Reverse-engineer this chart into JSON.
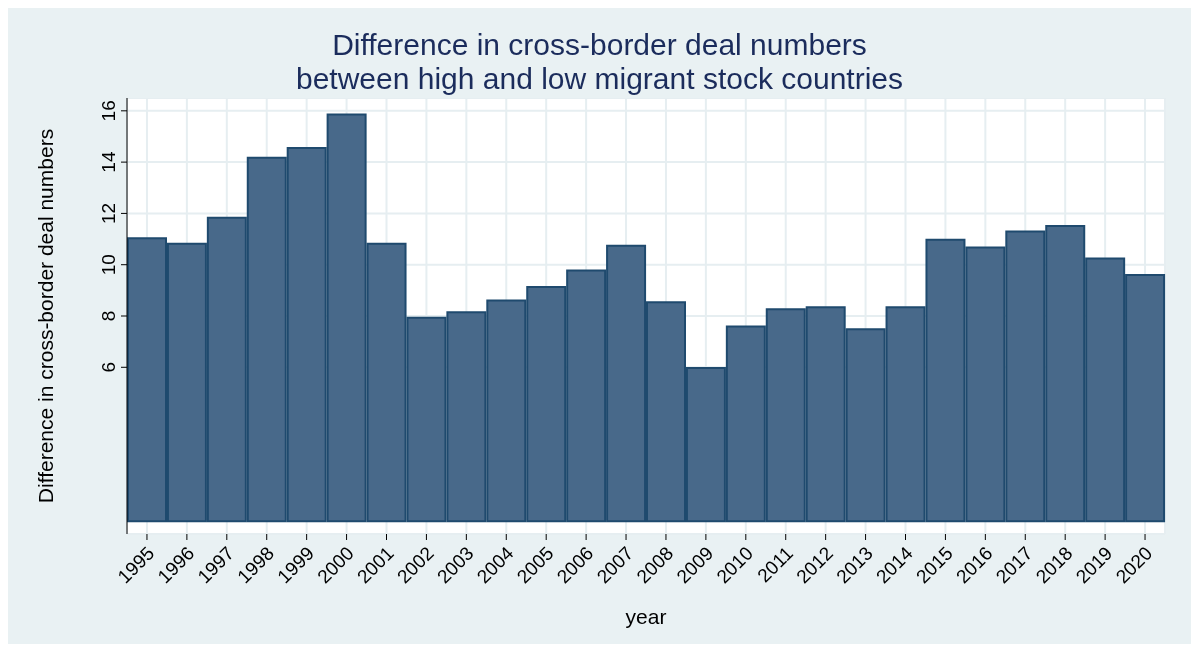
{
  "chart_data": {
    "type": "bar",
    "title": "Difference in cross-border deal numbers\nbetween high and low migrant stock countries",
    "xlabel": "year",
    "ylabel": "Difference in cross-border deal numbers",
    "categories": [
      "1995",
      "1996",
      "1997",
      "1998",
      "1999",
      "2000",
      "2001",
      "2002",
      "2003",
      "2004",
      "2005",
      "2006",
      "2007",
      "2008",
      "2009",
      "2010",
      "2011",
      "2012",
      "2013",
      "2014",
      "2015",
      "2016",
      "2017",
      "2018",
      "2019",
      "2020"
    ],
    "values": [
      11.03,
      10.82,
      11.83,
      14.17,
      14.55,
      15.86,
      10.82,
      7.93,
      8.15,
      8.6,
      9.13,
      9.77,
      10.74,
      8.54,
      5.97,
      7.59,
      8.26,
      8.34,
      7.48,
      8.34,
      10.97,
      10.67,
      11.29,
      11.51,
      10.24,
      9.6
    ],
    "color": "#48698a",
    "ylim": [
      -0.5,
      16.5
    ],
    "yticks": [
      6,
      8,
      10,
      12,
      14,
      16
    ],
    "grid": true
  }
}
